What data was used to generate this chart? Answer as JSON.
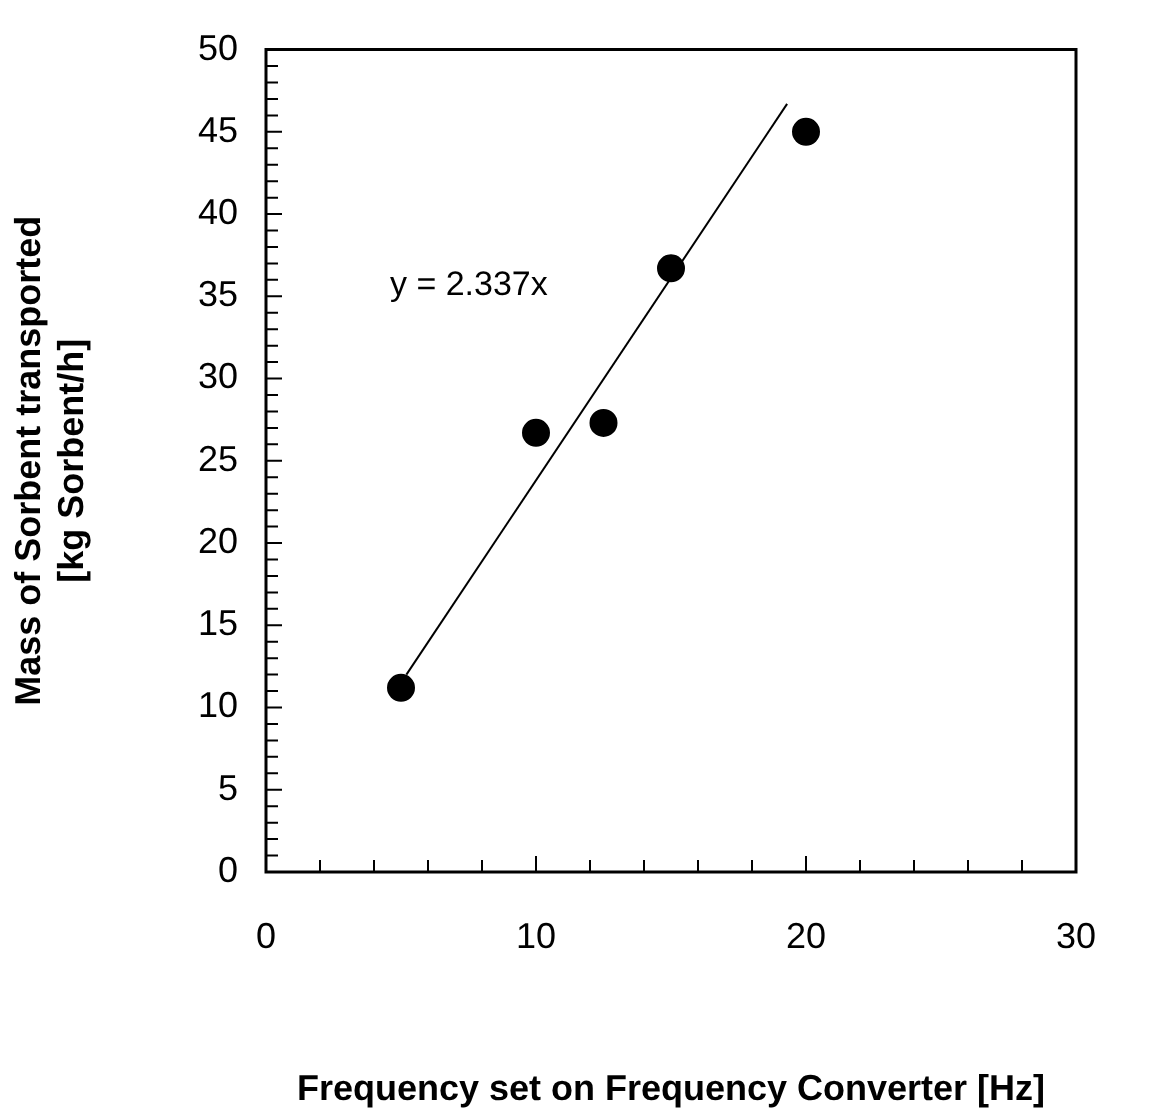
{
  "chart_data": {
    "type": "scatter",
    "xlabel": "Frequency set on Frequency Converter [Hz]",
    "ylabel": "Mass of Sorbent transported [kg Sorbent/h]",
    "annotations": [
      "y = 2.337x"
    ],
    "series": [
      {
        "color": "#000000",
        "marker": "circle",
        "x": [
          5,
          10,
          12.5,
          15,
          20
        ],
        "values": [
          11.2,
          26.7,
          27.3,
          36.7,
          45.0
        ]
      },
      {
        "type": "line",
        "color": "#000000",
        "marker": "none",
        "x": [
          5.2,
          19.3
        ],
        "values": [
          12.0,
          46.7
        ]
      }
    ],
    "xlim": [
      0,
      30
    ],
    "ylim": [
      0,
      50
    ],
    "xticks": [
      0,
      {
        "value": 2,
        "label": null
      },
      {
        "value": 4,
        "label": null
      },
      {
        "value": 6,
        "label": null
      },
      {
        "value": 8,
        "label": null
      },
      10,
      {
        "value": 12,
        "label": null
      },
      {
        "value": 14,
        "label": null
      },
      {
        "value": 16,
        "label": null
      },
      {
        "value": 18,
        "label": null
      },
      20,
      {
        "value": 22,
        "label": null
      },
      {
        "value": 24,
        "label": null
      },
      {
        "value": 26,
        "label": null
      },
      {
        "value": 28,
        "label": null
      },
      30
    ],
    "yticks": [
      0,
      {
        "value": 1,
        "label": null
      },
      {
        "value": 2,
        "label": null
      },
      {
        "value": 3,
        "label": null
      },
      {
        "value": 4,
        "label": null
      },
      5,
      {
        "value": 6,
        "label": null
      },
      {
        "value": 7,
        "label": null
      },
      {
        "value": 8,
        "label": null
      },
      {
        "value": 9,
        "label": null
      },
      10,
      {
        "value": 11,
        "label": null
      },
      {
        "value": 12,
        "label": null
      },
      {
        "value": 13,
        "label": null
      },
      {
        "value": 14,
        "label": null
      },
      15,
      {
        "value": 16,
        "label": null
      },
      {
        "value": 17,
        "label": null
      },
      {
        "value": 18,
        "label": null
      },
      {
        "value": 19,
        "label": null
      },
      20,
      {
        "value": 21,
        "label": null
      },
      {
        "value": 22,
        "label": null
      },
      {
        "value": 23,
        "label": null
      },
      {
        "value": 24,
        "label": null
      },
      25,
      {
        "value": 26,
        "label": null
      },
      {
        "value": 27,
        "label": null
      },
      {
        "value": 28,
        "label": null
      },
      {
        "value": 29,
        "label": null
      },
      30,
      {
        "value": 31,
        "label": null
      },
      {
        "value": 32,
        "label": null
      },
      {
        "value": 33,
        "label": null
      },
      {
        "value": 34,
        "label": null
      },
      35,
      {
        "value": 36,
        "label": null
      },
      {
        "value": 37,
        "label": null
      },
      {
        "value": 38,
        "label": null
      },
      {
        "value": 39,
        "label": null
      },
      40,
      {
        "value": 41,
        "label": null
      },
      {
        "value": 42,
        "label": null
      },
      {
        "value": 43,
        "label": null
      },
      {
        "value": 44,
        "label": null
      },
      45,
      {
        "value": 46,
        "label": null
      },
      {
        "value": 47,
        "label": null
      },
      {
        "value": 48,
        "label": null
      },
      {
        "value": 49,
        "label": null
      },
      50
    ],
    "grid": false,
    "legend": false
  }
}
